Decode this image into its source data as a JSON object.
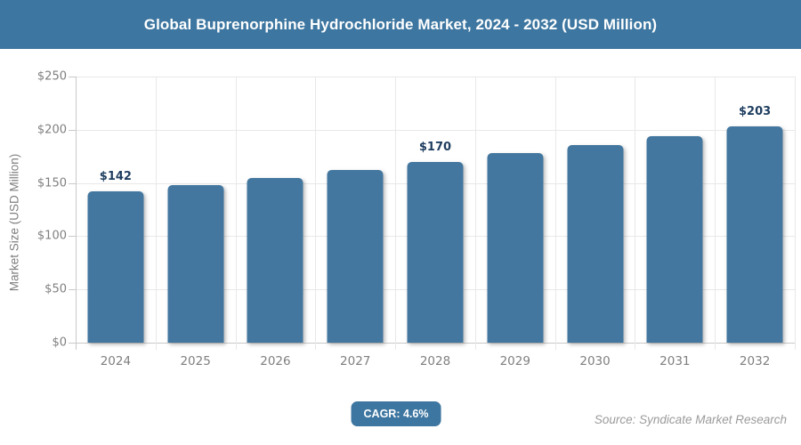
{
  "header": {
    "title": "Global Buprenorphine Hydrochloride Market, 2024 - 2032 (USD Million)"
  },
  "chart_data": {
    "type": "bar",
    "title": "Global Buprenorphine Hydrochloride Market, 2024 - 2032 (USD Million)",
    "categories": [
      "2024",
      "2025",
      "2026",
      "2027",
      "2028",
      "2029",
      "2030",
      "2031",
      "2032"
    ],
    "values": [
      142,
      148,
      155,
      162,
      170,
      178,
      186,
      194,
      203
    ],
    "data_labels": [
      "$142",
      "",
      "",
      "",
      "$170",
      "",
      "",
      "",
      "$203"
    ],
    "xlabel": "",
    "ylabel": "Market Size (USD Million)",
    "ylim": [
      0,
      250
    ],
    "ytick_values": [
      0,
      50,
      100,
      150,
      200,
      250
    ],
    "ytick_labels": [
      "$0",
      "$50",
      "$100",
      "$150",
      "$200",
      "$250"
    ],
    "grid": true,
    "legend": false,
    "bar_color": "#43779f"
  },
  "footer": {
    "cagr_label": "CAGR: 4.6%",
    "source": "Source: Syndicate Market Research"
  },
  "colors": {
    "accent": "#3d76a0",
    "bar": "#43779f",
    "data_label": "#1e3d5f",
    "axis_text": "#7f7f7f",
    "gridline": "#e8e8e8",
    "axis_line": "#c9c9c9",
    "source_text": "#9b9b9b"
  }
}
